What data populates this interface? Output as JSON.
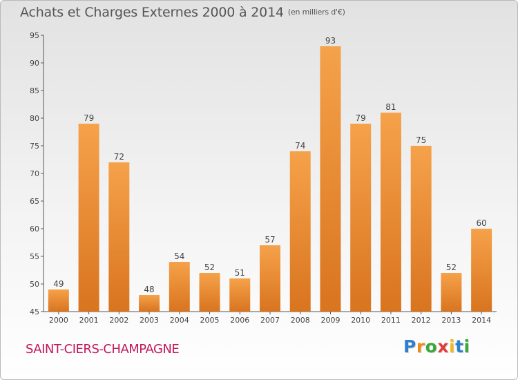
{
  "chart_data": {
    "type": "bar",
    "title": "Achats et Charges Externes 2000 à 2014",
    "subtitle": "(en milliers d'€)",
    "categories": [
      "2000",
      "2001",
      "2002",
      "2003",
      "2004",
      "2005",
      "2006",
      "2007",
      "2008",
      "2009",
      "2010",
      "2011",
      "2012",
      "2013",
      "2014"
    ],
    "values": [
      49,
      79,
      72,
      48,
      54,
      52,
      51,
      57,
      74,
      93,
      79,
      81,
      75,
      52,
      60
    ],
    "ylim": [
      45,
      95
    ],
    "yticks": [
      45,
      50,
      55,
      60,
      65,
      70,
      75,
      80,
      85,
      90,
      95
    ],
    "xlabel": "",
    "ylabel": "",
    "grid": false,
    "bar_color_top": "#f5a24a",
    "bar_color_bottom": "#d9741f"
  },
  "commune": "SAINT-CIERS-CHAMPAGNE",
  "logo": {
    "letters": [
      "P",
      "r",
      "o",
      "x",
      "i",
      "t",
      "i"
    ],
    "colors": [
      "#2f7fd0",
      "#f08a1e",
      "#3aa83a",
      "#e23b3b",
      "#f0b81e",
      "#2f7fd0",
      "#3aa83a"
    ]
  }
}
